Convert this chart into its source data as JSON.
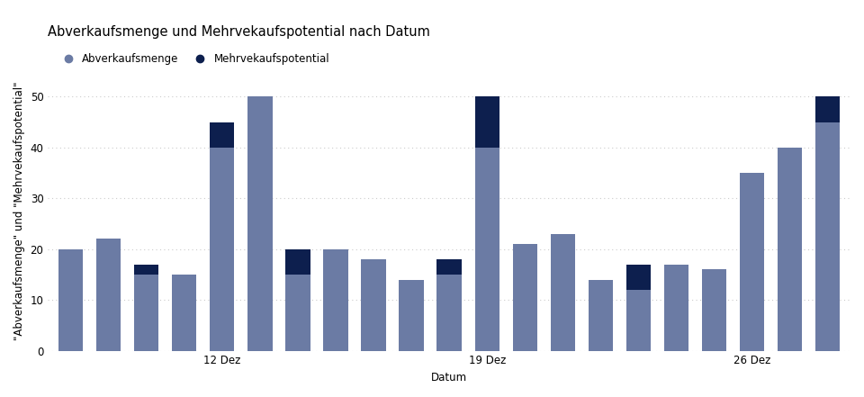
{
  "title": "Abverkaufsmenge und Mehrvekaufspotential nach Datum",
  "xlabel": "Datum",
  "ylabel": "\"Abverkaufsmenge\" und \"Mehrvekaufspotential\"",
  "legend_labels": [
    "Abverkaufsmenge",
    "Mehrvekaufspotential"
  ],
  "bar_color": "#6B7BA4",
  "extra_color": "#0D1F4E",
  "background_color": "#FFFFFF",
  "abverkaufsmenge": [
    20,
    22,
    15,
    15,
    40,
    50,
    15,
    20,
    18,
    14,
    15,
    40,
    21,
    23,
    14,
    12,
    17,
    16,
    35,
    40,
    45
  ],
  "mehrvekaufspotential": [
    0,
    0,
    2,
    0,
    5,
    0,
    5,
    0,
    0,
    0,
    3,
    10,
    0,
    0,
    0,
    5,
    0,
    0,
    0,
    0,
    5
  ],
  "x_tick_positions": [
    4,
    11,
    18
  ],
  "x_tick_labels": [
    "12 Dez",
    "19 Dez",
    "26 Dez"
  ],
  "ylim": [
    0,
    55
  ],
  "yticks": [
    0,
    10,
    20,
    30,
    40,
    50
  ],
  "grid_color": "#CCCCCC",
  "title_fontsize": 10.5,
  "label_fontsize": 8.5,
  "tick_fontsize": 8.5
}
